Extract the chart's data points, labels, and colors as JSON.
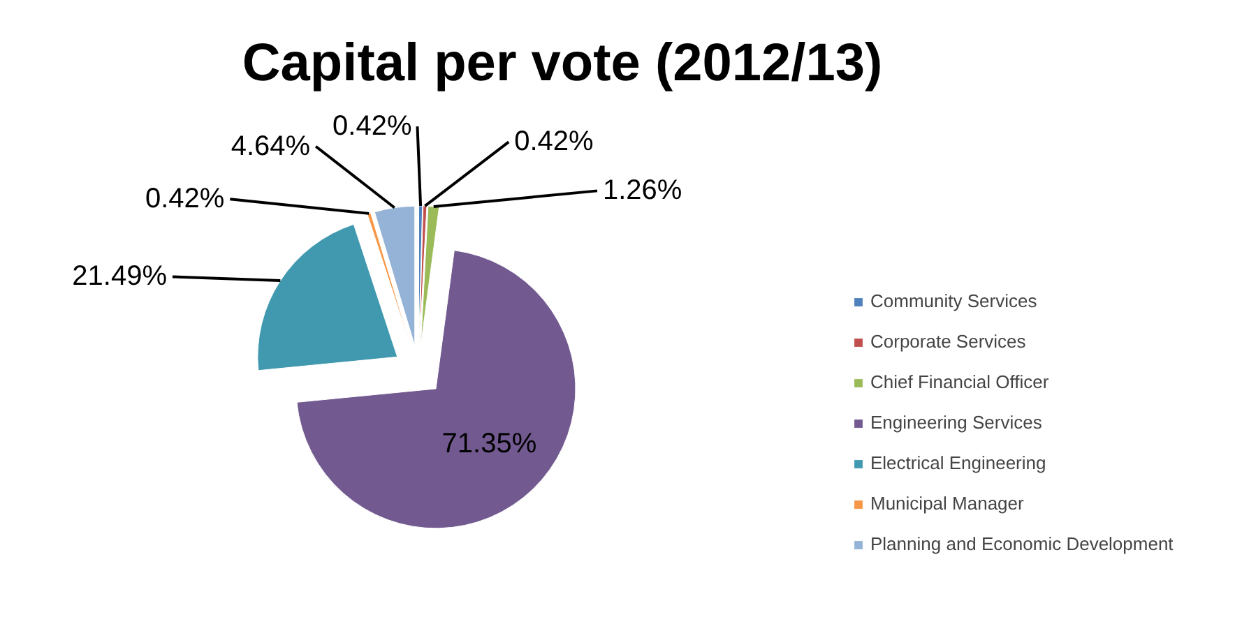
{
  "chart_data": {
    "type": "pie",
    "title": "Capital per vote (2012/13)",
    "categories": [
      "Community Services",
      "Corporate Services",
      "Chief Financial Officer",
      "Engineering Services",
      "Electrical Engineering",
      "Municipal Manager",
      "Planning and Economic Development"
    ],
    "values": [
      0.42,
      0.42,
      1.26,
      71.35,
      21.49,
      0.42,
      4.64
    ],
    "colors": [
      "#4f81bd",
      "#c0504d",
      "#9bbb59",
      "#725a91",
      "#4199b0",
      "#f79646",
      "#95b3d7"
    ],
    "value_labels": [
      "0.42%",
      "0.42%",
      "1.26%",
      "71.35%",
      "21.49%",
      "0.42%",
      "4.64%"
    ],
    "legend": "right"
  }
}
